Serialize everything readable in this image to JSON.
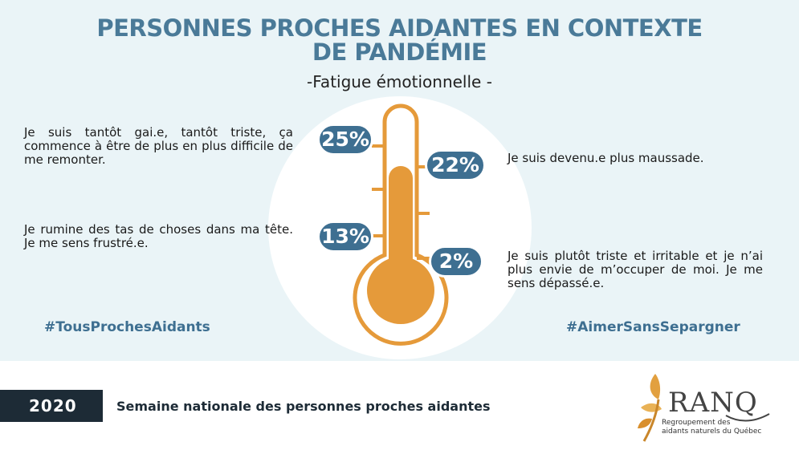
{
  "title": {
    "line1": "PERSONNES PROCHES AIDANTES EN CONTEXTE",
    "line2": "DE PANDÉMIE"
  },
  "subtitle": "-Fatigue émotionnelle -",
  "items": [
    {
      "percent": "25%",
      "text": "Je suis tantôt gai.e, tantôt triste, ça commence à être de plus en plus difficile de me remonter."
    },
    {
      "percent": "22%",
      "text": "Je suis devenu.e plus maussade."
    },
    {
      "percent": "13%",
      "text": "Je rumine des tas de choses dans ma tête. Je me sens frustré.e."
    },
    {
      "percent": "2%",
      "text": "Je suis plutôt triste et irritable et je n’ai plus envie de m’occuper de moi. Je me sens dépassé.e."
    }
  ],
  "hashtags": {
    "left": "#TousProchesAidants",
    "right": "#AimerSansSepargner"
  },
  "footer": {
    "year": "2020",
    "text": "Semaine nationale des personnes proches aidantes"
  },
  "logo": {
    "name": "RANQ",
    "sub_line1": "Regroupement des",
    "sub_line2": "aidants naturels du Québec"
  },
  "colors": {
    "accent_blue": "#3e6f91",
    "title_blue": "#4a7a98",
    "thermometer_orange": "#e59a3a",
    "background": "#eaf4f7",
    "dark": "#1d2b36"
  }
}
